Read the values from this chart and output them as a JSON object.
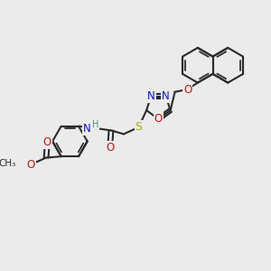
{
  "bg_color": "#ebebeb",
  "bond_color": "#2a2a2a",
  "bond_width": 1.5,
  "atom_colors": {
    "N": "#1010cc",
    "O": "#cc1010",
    "S": "#aaaa00",
    "C": "#2a2a2a",
    "H": "#4a9090"
  },
  "fig_size": [
    3.0,
    3.0
  ],
  "dpi": 100,
  "xlim": [
    0,
    10
  ],
  "ylim": [
    0,
    10
  ]
}
